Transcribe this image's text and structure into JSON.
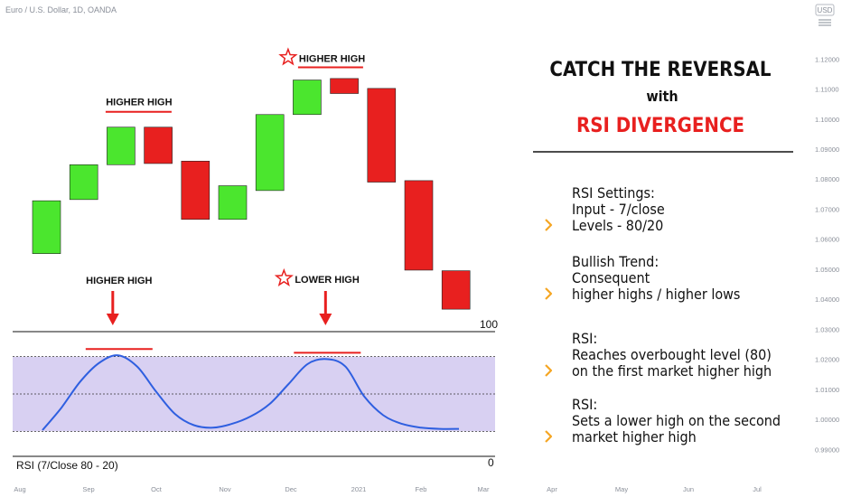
{
  "header": {
    "symbol": "Euro / U.S. Dollar, 1D, OANDA",
    "currency_badge": "USD",
    "menu_icon": "hamburger-icon"
  },
  "colors": {
    "bull": "#4be62e",
    "bear": "#e8201f",
    "accent": "#e8201f",
    "rsi_line": "#2f5fe0",
    "rsi_band": "#d8d0f2",
    "chevron": "#f5a623",
    "text": "#111111",
    "axis_text": "#8a8f99"
  },
  "chart_data": [
    {
      "type": "candlestick",
      "title": "Euro / U.S. Dollar, 1D, OANDA",
      "y_axis_ticks": [
        "1.12000",
        "1.11000",
        "1.10000",
        "1.09000",
        "1.08000",
        "1.07000",
        "1.06000",
        "1.05000",
        "1.04000",
        "1.03000",
        "1.02000",
        "1.01000",
        "1.00000",
        "0.99000"
      ],
      "ylim": [
        0.9865,
        1.1255
      ],
      "x_axis_ticks": [
        "Aug",
        "Sep",
        "Oct",
        "Nov",
        "Dec",
        "2021",
        "Feb",
        "Mar",
        "Apr",
        "May",
        "Jun",
        "Jul"
      ],
      "candles": [
        {
          "open": 1.0552,
          "close": 1.0728,
          "dir": "bull"
        },
        {
          "open": 1.0732,
          "close": 1.0848,
          "dir": "bull"
        },
        {
          "open": 1.0848,
          "close": 1.0973,
          "dir": "bull"
        },
        {
          "open": 1.0973,
          "close": 1.0852,
          "dir": "bear"
        },
        {
          "open": 1.086,
          "close": 1.0666,
          "dir": "bear"
        },
        {
          "open": 1.0666,
          "close": 1.0778,
          "dir": "bull"
        },
        {
          "open": 1.0762,
          "close": 1.1015,
          "dir": "bull"
        },
        {
          "open": 1.1015,
          "close": 1.113,
          "dir": "bull"
        },
        {
          "open": 1.1135,
          "close": 1.1085,
          "dir": "bear"
        },
        {
          "open": 1.1102,
          "close": 1.079,
          "dir": "bear"
        },
        {
          "open": 1.0795,
          "close": 1.0497,
          "dir": "bear"
        },
        {
          "open": 1.0495,
          "close": 1.0367,
          "dir": "bear"
        }
      ],
      "annotations": [
        {
          "text": "HIGHER HIGH",
          "candle": 2,
          "star": false
        },
        {
          "text": "HIGHER HIGH",
          "candle": 7,
          "star": true
        }
      ]
    },
    {
      "type": "line",
      "title": "RSI (7/Close 80 - 20)",
      "ylim": [
        0,
        100
      ],
      "y_labels": [
        "100",
        "0"
      ],
      "levels": [
        80,
        50,
        20
      ],
      "series": [
        {
          "values": [
            21,
            39,
            60,
            75,
            81,
            72,
            52,
            34,
            25,
            23,
            26,
            32,
            42,
            58,
            74,
            78,
            72,
            48,
            33,
            26,
            23,
            22,
            22
          ]
        }
      ],
      "annotations": [
        {
          "text": "HIGHER HIGH",
          "star": false
        },
        {
          "text": "LOWER HIGH",
          "star": true
        }
      ]
    }
  ],
  "panel": {
    "title_line1": "CATCH THE REVERSAL",
    "title_line2": "with",
    "title_line3": "RSI DIVERGENCE",
    "bullets": [
      {
        "icon": "chevron-right-icon",
        "lines": [
          "RSI Settings:",
          "Input - 7/close",
          "Levels - 80/20"
        ]
      },
      {
        "icon": "chevron-right-icon",
        "lines": [
          "Bullish Trend:",
          "Consequent",
          "higher highs / higher lows"
        ]
      },
      {
        "icon": "chevron-right-icon",
        "lines": [
          "RSI:",
          "Reaches overbought level (80)",
          "on the first market higher high"
        ]
      },
      {
        "icon": "chevron-right-icon",
        "lines": [
          "RSI:",
          "Sets a lower high on the second",
          "market higher high"
        ]
      }
    ]
  }
}
